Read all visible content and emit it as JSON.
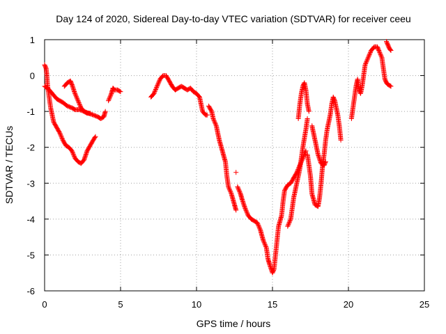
{
  "chart_data": {
    "type": "scatter",
    "title": "Day 124 of 2020, Sidereal Day-to-day VTEC variation (SDTVAR) for receiver ceeu",
    "xlabel": "GPS time / hours",
    "ylabel": "SDTVAR / TECUs",
    "xlim": [
      0,
      25
    ],
    "ylim": [
      -6,
      1
    ],
    "xticks": [
      0,
      5,
      10,
      15,
      20,
      25
    ],
    "yticks": [
      -6,
      -5,
      -4,
      -3,
      -2,
      -1,
      0,
      1
    ],
    "grid": true,
    "legend": "none",
    "marker": "+",
    "color": "#ff0000",
    "segments": [
      [
        [
          0.0,
          0.3
        ],
        [
          0.1,
          0.2
        ],
        [
          0.15,
          0.0
        ],
        [
          0.2,
          -0.3
        ],
        [
          0.3,
          -0.6
        ],
        [
          0.4,
          -0.9
        ],
        [
          0.5,
          -1.1
        ],
        [
          0.6,
          -1.3
        ],
        [
          0.8,
          -1.45
        ],
        [
          1.0,
          -1.6
        ],
        [
          1.2,
          -1.8
        ],
        [
          1.4,
          -1.95
        ],
        [
          1.6,
          -2.0
        ],
        [
          1.8,
          -2.1
        ],
        [
          2.0,
          -2.3
        ],
        [
          2.2,
          -2.4
        ],
        [
          2.4,
          -2.45
        ],
        [
          2.6,
          -2.35
        ],
        [
          2.8,
          -2.1
        ],
        [
          3.0,
          -1.95
        ],
        [
          3.2,
          -1.8
        ],
        [
          3.35,
          -1.7
        ]
      ],
      [
        [
          0.0,
          -0.3
        ],
        [
          0.2,
          -0.35
        ],
        [
          0.4,
          -0.45
        ],
        [
          0.6,
          -0.55
        ],
        [
          0.8,
          -0.65
        ],
        [
          1.0,
          -0.7
        ],
        [
          1.2,
          -0.75
        ],
        [
          1.5,
          -0.85
        ],
        [
          1.8,
          -0.9
        ],
        [
          2.0,
          -0.95
        ],
        [
          2.3,
          -0.95
        ],
        [
          2.6,
          -1.0
        ],
        [
          2.9,
          -1.05
        ],
        [
          3.2,
          -1.1
        ],
        [
          3.5,
          -1.15
        ],
        [
          3.7,
          -1.2
        ],
        [
          3.9,
          -1.15
        ],
        [
          4.0,
          -1.0
        ]
      ],
      [
        [
          1.3,
          -0.3
        ],
        [
          1.5,
          -0.2
        ],
        [
          1.7,
          -0.15
        ],
        [
          1.8,
          -0.25
        ],
        [
          2.0,
          -0.5
        ],
        [
          2.2,
          -0.7
        ],
        [
          2.4,
          -0.9
        ],
        [
          2.6,
          -1.0
        ],
        [
          2.8,
          -1.05
        ],
        [
          3.0,
          -1.05
        ]
      ],
      [
        [
          4.2,
          -0.7
        ],
        [
          4.4,
          -0.5
        ],
        [
          4.5,
          -0.35
        ],
        [
          4.6,
          -0.4
        ],
        [
          4.8,
          -0.4
        ],
        [
          5.0,
          -0.45
        ]
      ],
      [
        [
          7.0,
          -0.6
        ],
        [
          7.2,
          -0.5
        ],
        [
          7.4,
          -0.3
        ],
        [
          7.6,
          -0.1
        ],
        [
          7.8,
          0.0
        ],
        [
          8.0,
          0.0
        ],
        [
          8.2,
          -0.15
        ],
        [
          8.4,
          -0.3
        ],
        [
          8.6,
          -0.4
        ],
        [
          8.8,
          -0.35
        ],
        [
          9.0,
          -0.3
        ],
        [
          9.2,
          -0.35
        ],
        [
          9.4,
          -0.4
        ],
        [
          9.6,
          -0.35
        ],
        [
          9.8,
          -0.45
        ],
        [
          10.0,
          -0.5
        ],
        [
          10.2,
          -0.6
        ],
        [
          10.3,
          -0.8
        ],
        [
          10.4,
          -1.0
        ],
        [
          10.6,
          -1.1
        ],
        [
          10.7,
          -1.1
        ]
      ],
      [
        [
          10.8,
          -0.85
        ],
        [
          11.0,
          -1.0
        ],
        [
          11.1,
          -1.2
        ],
        [
          11.3,
          -1.4
        ],
        [
          11.5,
          -1.8
        ],
        [
          11.7,
          -2.1
        ],
        [
          11.9,
          -2.4
        ],
        [
          12.0,
          -2.8
        ],
        [
          12.1,
          -3.1
        ],
        [
          12.3,
          -3.3
        ],
        [
          12.5,
          -3.6
        ],
        [
          12.6,
          -3.75
        ]
      ],
      [
        [
          12.6,
          -2.7
        ]
      ],
      [
        [
          12.7,
          -3.1
        ],
        [
          12.9,
          -3.3
        ],
        [
          13.0,
          -3.45
        ],
        [
          13.2,
          -3.7
        ],
        [
          13.4,
          -3.9
        ],
        [
          13.6,
          -4.0
        ],
        [
          13.8,
          -4.05
        ],
        [
          14.0,
          -4.1
        ],
        [
          14.2,
          -4.3
        ],
        [
          14.4,
          -4.6
        ],
        [
          14.6,
          -4.8
        ],
        [
          14.7,
          -5.1
        ],
        [
          14.8,
          -5.25
        ],
        [
          15.0,
          -5.5
        ],
        [
          15.1,
          -5.4
        ],
        [
          15.2,
          -5.0
        ],
        [
          15.3,
          -4.6
        ],
        [
          15.4,
          -4.2
        ],
        [
          15.6,
          -3.9
        ],
        [
          15.7,
          -3.5
        ],
        [
          15.8,
          -3.2
        ],
        [
          16.0,
          -3.05
        ],
        [
          16.2,
          -3.0
        ],
        [
          16.4,
          -2.85
        ],
        [
          16.6,
          -2.7
        ],
        [
          16.8,
          -2.5
        ],
        [
          17.0,
          -2.3
        ],
        [
          17.2,
          -2.1
        ]
      ],
      [
        [
          16.0,
          -4.2
        ],
        [
          16.2,
          -4.0
        ],
        [
          16.4,
          -3.4
        ],
        [
          16.6,
          -3.0
        ],
        [
          16.8,
          -2.6
        ],
        [
          17.0,
          -2.0
        ],
        [
          17.2,
          -1.5
        ],
        [
          17.3,
          -1.2
        ]
      ],
      [
        [
          16.7,
          -1.2
        ],
        [
          16.8,
          -0.8
        ],
        [
          16.9,
          -0.5
        ],
        [
          17.0,
          -0.3
        ],
        [
          17.1,
          -0.2
        ],
        [
          17.2,
          -0.4
        ],
        [
          17.3,
          -0.8
        ],
        [
          17.4,
          -1.0
        ]
      ],
      [
        [
          17.3,
          -2.2
        ],
        [
          17.5,
          -2.8
        ],
        [
          17.6,
          -3.3
        ],
        [
          17.8,
          -3.6
        ],
        [
          18.0,
          -3.65
        ],
        [
          18.1,
          -3.4
        ],
        [
          18.2,
          -3.0
        ],
        [
          18.3,
          -2.5
        ],
        [
          18.4,
          -2.2
        ],
        [
          18.5,
          -1.8
        ],
        [
          18.6,
          -1.5
        ],
        [
          18.8,
          -1.1
        ],
        [
          18.9,
          -0.8
        ],
        [
          19.0,
          -0.6
        ],
        [
          19.1,
          -0.7
        ],
        [
          19.2,
          -0.9
        ],
        [
          19.3,
          -1.1
        ],
        [
          19.4,
          -1.4
        ],
        [
          19.5,
          -1.8
        ]
      ],
      [
        [
          17.6,
          -1.4
        ],
        [
          17.8,
          -1.8
        ],
        [
          18.0,
          -2.2
        ],
        [
          18.2,
          -2.45
        ],
        [
          18.4,
          -2.5
        ],
        [
          18.5,
          -2.4
        ]
      ],
      [
        [
          20.2,
          -1.2
        ],
        [
          20.3,
          -0.9
        ],
        [
          20.4,
          -0.6
        ],
        [
          20.5,
          -0.3
        ],
        [
          20.6,
          -0.1
        ],
        [
          20.7,
          -0.4
        ],
        [
          20.8,
          -0.5
        ],
        [
          20.9,
          -0.3
        ],
        [
          21.0,
          0.0
        ],
        [
          21.1,
          0.3
        ],
        [
          21.3,
          0.5
        ],
        [
          21.5,
          0.7
        ],
        [
          21.7,
          0.8
        ],
        [
          21.9,
          0.8
        ],
        [
          22.0,
          0.7
        ],
        [
          22.2,
          0.5
        ],
        [
          22.3,
          0.2
        ],
        [
          22.4,
          -0.1
        ],
        [
          22.5,
          -0.2
        ],
        [
          22.6,
          -0.25
        ],
        [
          22.8,
          -0.3
        ]
      ],
      [
        [
          22.5,
          0.95
        ],
        [
          22.6,
          0.85
        ],
        [
          22.7,
          0.75
        ],
        [
          22.8,
          0.7
        ]
      ]
    ]
  }
}
